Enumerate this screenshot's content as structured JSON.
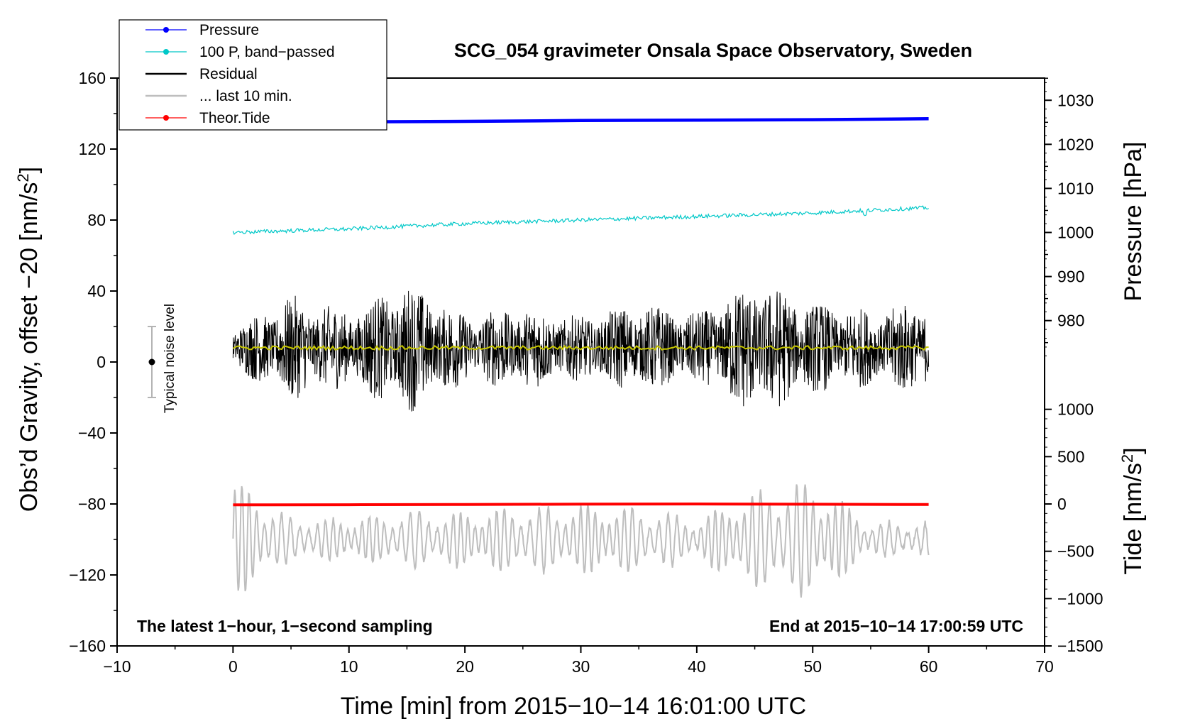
{
  "chart_data": {
    "type": "line",
    "title": "SCG_054 gravimeter Onsala Space Observatory, Sweden",
    "xlabel": "Time [min] from 2015−10−14 16:01:00 UTC",
    "ylabel_left": "Obs’d Gravity, offset −20 [nm/s²]",
    "ylabel_left_main": "Obs’d Gravity, offset −20 [nm/s",
    "ylabel_right_pressure": "Pressure [hPa]",
    "ylabel_right_tide_main": "Tide [nm/s",
    "superscript": "2",
    "closing_bracket": "]",
    "xlim": [
      -10,
      70
    ],
    "ylim": [
      -160,
      160
    ],
    "x_ticks": [
      -10,
      0,
      10,
      20,
      30,
      40,
      50,
      60,
      70
    ],
    "x_tick_labels": [
      "−10",
      "0",
      "10",
      "20",
      "30",
      "40",
      "50",
      "60",
      "70"
    ],
    "y_ticks": [
      -160,
      -120,
      -80,
      -40,
      0,
      40,
      80,
      120,
      160
    ],
    "y_tick_labels": [
      "−160",
      "−120",
      "−80",
      "−40",
      "0",
      "40",
      "80",
      "120",
      "160"
    ],
    "pressure_axis": {
      "ticks": [
        980,
        990,
        1000,
        1010,
        1020,
        1030
      ],
      "tick_labels": [
        "980",
        "990",
        "1000",
        "1010",
        "1020",
        "1030"
      ],
      "mapping": {
        "value_a": 1000,
        "y_a": 73,
        "value_b": 1030,
        "y_b": 147.5
      }
    },
    "tide_axis": {
      "ticks": [
        -1500,
        -1000,
        -500,
        0,
        500,
        1000
      ],
      "tick_labels": [
        "−1500",
        "−1000",
        "−500",
        "0",
        "500",
        "1000"
      ],
      "mapping": {
        "value_a": -1500,
        "y_a": -160,
        "value_b": 0,
        "y_b": -80
      }
    },
    "legend": [
      {
        "name": "Pressure",
        "color": "#0000ff",
        "marker": true
      },
      {
        "name": "100 P, band−passed",
        "color": "#00c8c8",
        "marker": true
      },
      {
        "name": "Residual",
        "color": "#000000",
        "marker": false
      },
      {
        "name": "... last 10 min.",
        "color": "#bebebe",
        "marker": false
      },
      {
        "name": "Theor.Tide",
        "color": "#ff0000",
        "marker": true
      }
    ],
    "series": [
      {
        "name": "Pressure",
        "color": "#0000ff",
        "axis": "pressure",
        "x": [
          0,
          10,
          20,
          30,
          40,
          50,
          60
        ],
        "values": [
          1025.0,
          1025.1,
          1025.2,
          1025.4,
          1025.5,
          1025.6,
          1025.8
        ]
      },
      {
        "name": "100 P, band−passed",
        "color": "#00c8c8",
        "axis": "left",
        "x": [
          0,
          10,
          20,
          30,
          40,
          50,
          60
        ],
        "values": [
          73,
          75,
          78,
          80,
          82,
          84,
          87
        ]
      },
      {
        "name": "Residual",
        "color": "#000000",
        "axis": "left",
        "x": [
          0,
          5,
          10,
          15,
          20,
          25,
          30,
          35,
          40,
          45,
          50,
          55,
          60
        ],
        "envelope": [
          12,
          30,
          22,
          38,
          20,
          24,
          18,
          26,
          20,
          40,
          26,
          22,
          28
        ],
        "mean": 8
      },
      {
        "name": "Residual smoothed",
        "color": "#c8c800",
        "axis": "left",
        "x": [
          0,
          30,
          60
        ],
        "values": [
          8,
          8,
          8
        ]
      },
      {
        "name": "... last 10 min.",
        "color": "#bebebe",
        "axis": "left",
        "x": [
          0,
          5,
          10,
          15,
          20,
          25,
          30,
          35,
          40,
          45,
          50,
          55,
          60
        ],
        "envelope": [
          35,
          12,
          12,
          16,
          16,
          18,
          20,
          18,
          12,
          28,
          34,
          10,
          10
        ],
        "mean": -100
      },
      {
        "name": "Theor.Tide",
        "color": "#ff0000",
        "axis": "tide",
        "x": [
          0,
          10,
          20,
          30,
          40,
          50,
          60
        ],
        "values": [
          -10,
          -8,
          -5,
          -2,
          0,
          -3,
          -6
        ]
      }
    ],
    "noise_bar": {
      "label": "Typical noise level",
      "x": -7,
      "center": 0,
      "half_range": 20
    },
    "annotations": {
      "left_bottom": "The latest 1−hour, 1−second sampling",
      "right_bottom": "End at 2015−10−14 17:00:59 UTC"
    }
  }
}
